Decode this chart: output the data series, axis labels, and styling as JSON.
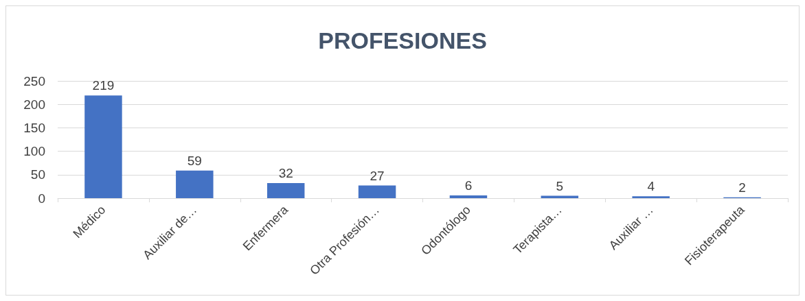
{
  "chart_data": {
    "type": "bar",
    "title": "PROFESIONES",
    "categories": [
      "Médico",
      "Auxiliar de…",
      "Enfermera",
      "Otra Profesión…",
      "Odontólogo",
      "Terapista…",
      "Auxiliar …",
      "Fisioterapeuta"
    ],
    "values": [
      219,
      59,
      32,
      27,
      6,
      5,
      4,
      2
    ],
    "color": "#4472c4",
    "ylim": [
      0,
      250
    ],
    "yticks": [
      0,
      50,
      100,
      150,
      200,
      250
    ],
    "grid": "y",
    "data_labels": true
  }
}
